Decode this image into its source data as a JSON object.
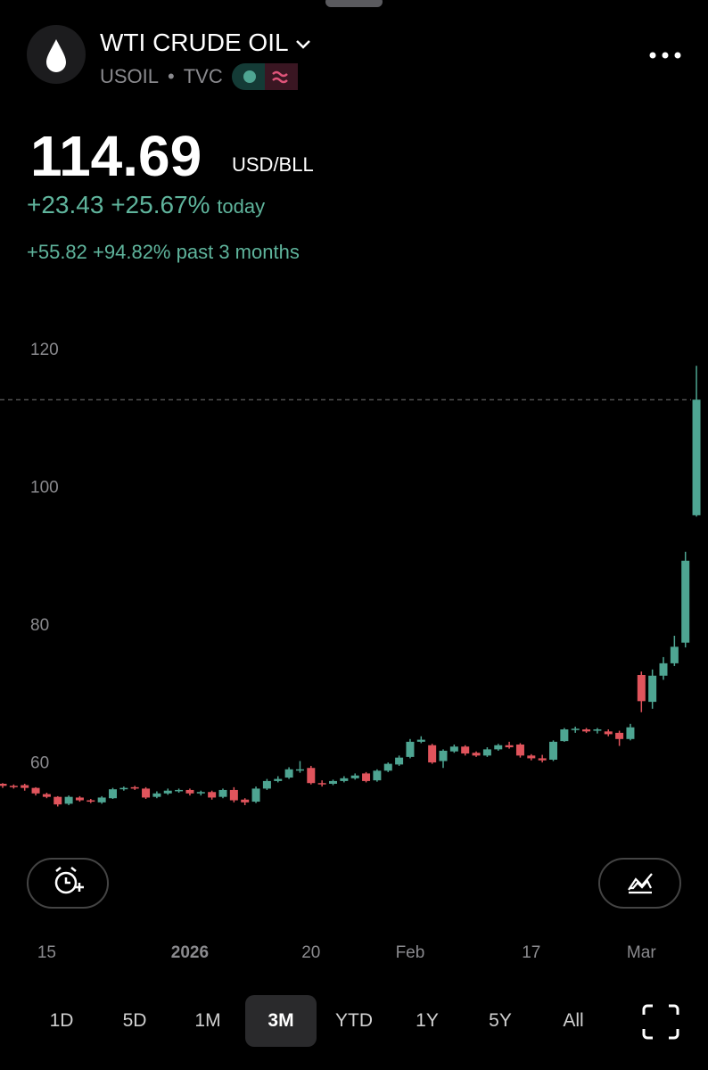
{
  "header": {
    "title": "WTI CRUDE OIL",
    "symbol": "USOIL",
    "separator": "•",
    "exchange": "TVC"
  },
  "quote": {
    "price": "114.69",
    "unit": "USD/BLL",
    "change": "+23.43",
    "change_pct": "+25.67%",
    "change_period": "today",
    "range_change": "+55.82",
    "range_change_pct": "+94.82%",
    "range_period": "past 3 months"
  },
  "chart_data": {
    "type": "candlestick",
    "categories": [
      null,
      null,
      null,
      null,
      "15",
      null,
      null,
      null,
      null,
      null,
      null,
      null,
      null,
      null,
      null,
      null,
      null,
      "2026",
      null,
      null,
      null,
      null,
      null,
      null,
      null,
      null,
      null,
      null,
      "20",
      null,
      null,
      null,
      null,
      null,
      null,
      null,
      null,
      "Feb",
      null,
      null,
      null,
      null,
      null,
      null,
      null,
      null,
      null,
      null,
      "17",
      null,
      null,
      null,
      null,
      null,
      null,
      null,
      null,
      null,
      "Mar",
      null,
      null,
      null,
      null,
      null
    ],
    "open": [
      58.9,
      58.6,
      58.7,
      58.3,
      57.4,
      57.0,
      56.0,
      56.9,
      56.5,
      56.2,
      56.8,
      58.1,
      58.4,
      58.2,
      57.0,
      57.5,
      57.9,
      58.0,
      57.5,
      57.7,
      57.0,
      58.0,
      56.6,
      56.3,
      58.2,
      59.3,
      59.8,
      60.9,
      61.2,
      59.0,
      58.9,
      59.3,
      59.7,
      60.4,
      59.4,
      60.8,
      61.7,
      62.8,
      65.0,
      64.5,
      62.2,
      63.6,
      64.3,
      63.4,
      63.0,
      63.9,
      64.5,
      64.6,
      63.0,
      62.6,
      62.4,
      65.1,
      66.7,
      66.8,
      66.6,
      66.5,
      66.3,
      65.4,
      74.7,
      70.8,
      74.6,
      76.4,
      79.4,
      97.9
    ],
    "high": [
      59.0,
      58.8,
      58.9,
      58.4,
      57.6,
      57.1,
      57.2,
      57.1,
      56.7,
      57.1,
      58.3,
      58.5,
      58.6,
      58.4,
      57.8,
      58.2,
      58.2,
      58.2,
      57.9,
      57.9,
      58.2,
      58.4,
      56.8,
      58.5,
      59.6,
      60.0,
      61.3,
      62.2,
      61.5,
      59.4,
      59.5,
      60.0,
      60.4,
      60.6,
      61.0,
      62.0,
      63.0,
      65.4,
      65.8,
      64.7,
      63.9,
      64.6,
      64.5,
      63.6,
      64.2,
      64.7,
      65.0,
      64.8,
      63.2,
      63.1,
      65.2,
      67.0,
      67.2,
      67.0,
      67.0,
      66.8,
      66.6,
      67.6,
      75.2,
      75.5,
      77.3,
      80.4,
      92.6,
      119.6
    ],
    "low": [
      58.3,
      58.2,
      57.9,
      57.2,
      56.8,
      55.6,
      55.8,
      56.3,
      56.1,
      56.0,
      56.7,
      57.9,
      58.0,
      56.7,
      56.8,
      57.3,
      57.6,
      57.2,
      57.2,
      56.6,
      56.8,
      56.2,
      55.8,
      56.1,
      58.0,
      59.1,
      59.6,
      60.5,
      58.8,
      58.5,
      58.7,
      59.1,
      59.5,
      59.1,
      59.2,
      60.6,
      61.5,
      62.6,
      64.8,
      61.8,
      61.2,
      63.4,
      63.0,
      62.8,
      62.8,
      63.7,
      64.0,
      62.7,
      62.3,
      62.0,
      62.2,
      65.0,
      66.3,
      66.3,
      66.2,
      65.8,
      64.4,
      65.2,
      69.3,
      69.8,
      74.0,
      76.0,
      78.7,
      97.7
    ],
    "close": [
      58.6,
      58.5,
      58.3,
      57.5,
      57.0,
      55.9,
      57.0,
      56.5,
      56.3,
      56.9,
      58.1,
      58.3,
      58.2,
      56.9,
      57.5,
      57.9,
      58.0,
      57.5,
      57.7,
      56.9,
      58.0,
      56.5,
      56.2,
      58.2,
      59.3,
      59.6,
      61.0,
      61.0,
      59.0,
      58.9,
      59.3,
      59.7,
      60.1,
      59.3,
      60.8,
      61.8,
      62.7,
      65.0,
      65.3,
      62.0,
      63.7,
      64.3,
      63.3,
      63.0,
      63.9,
      64.5,
      64.2,
      63.0,
      62.6,
      62.3,
      65.0,
      66.8,
      66.9,
      66.5,
      66.8,
      66.1,
      65.4,
      67.1,
      70.9,
      74.6,
      76.4,
      78.8,
      91.3,
      114.69
    ],
    "ylim": [
      51,
      130
    ],
    "yticks": [
      60,
      80,
      100,
      120
    ],
    "up_color": "#4ea592",
    "down_color": "#e0545c",
    "last_price_line": true
  },
  "timeframes": {
    "options": [
      "1D",
      "5D",
      "1M",
      "3M",
      "YTD",
      "1Y",
      "5Y",
      "All"
    ],
    "selected": 3
  }
}
